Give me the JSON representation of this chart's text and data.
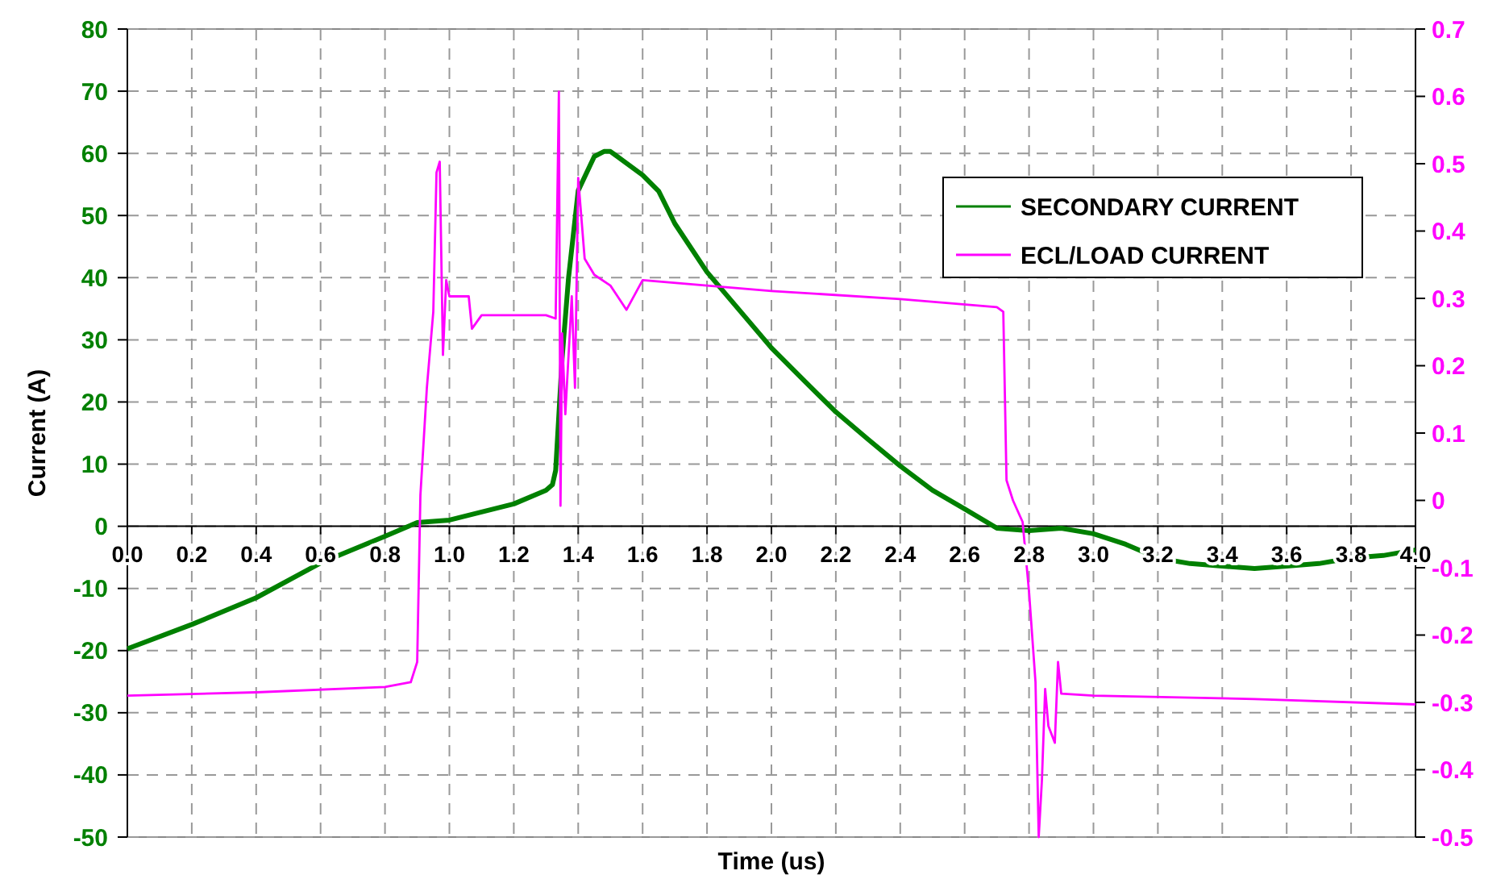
{
  "chart_data": {
    "type": "line",
    "xlabel": "Time (us)",
    "ylabel": "Current (A)",
    "xlim": [
      0,
      4
    ],
    "xticks": [
      {
        "value": 0,
        "label": "0.0"
      },
      0.2,
      0.4,
      0.6,
      0.8,
      {
        "value": 1,
        "label": "1.0"
      },
      1.2,
      1.4,
      1.6,
      1.8,
      {
        "value": 2,
        "label": "2.0"
      },
      2.2,
      2.4,
      2.6,
      2.8,
      {
        "value": 3,
        "label": "3.0"
      },
      3.2,
      3.4,
      3.6,
      3.8,
      {
        "value": 4,
        "label": "4.0"
      }
    ],
    "ylim": [
      -50,
      80
    ],
    "yticks": [
      -50,
      -40,
      -30,
      -20,
      -10,
      0,
      10,
      20,
      30,
      40,
      50,
      60,
      70,
      80
    ],
    "y2lim": [
      -0.5,
      0.7
    ],
    "y2ticks": [
      -0.5,
      -0.4,
      -0.3,
      -0.2,
      -0.1,
      0,
      0.1,
      0.2,
      0.3,
      0.4,
      0.5,
      0.6,
      0.7
    ],
    "grid": true,
    "legend": "right",
    "marker": "none",
    "line_style": "solid",
    "series": [
      {
        "name": "SECONDARY CURRENT",
        "color": "#008000",
        "x": [
          0,
          0.2,
          0.4,
          0.6,
          0.8,
          0.9,
          1.0,
          1.2,
          1.3,
          1.32,
          1.33,
          1.34,
          1.35,
          1.37,
          1.4,
          1.45,
          1.48,
          1.5,
          1.6,
          1.65,
          1.7,
          1.8,
          1.9,
          2.0,
          2.1,
          2.2,
          2.3,
          2.4,
          2.5,
          2.6,
          2.7,
          2.8,
          2.9,
          3.0,
          3.1,
          3.2,
          3.3,
          3.4,
          3.5,
          3.6,
          3.7,
          3.8,
          3.9,
          4.0
        ],
        "values": [
          -19.7,
          -15.8,
          -11.5,
          -5.9,
          -1.6,
          0.6,
          1.0,
          3.6,
          5.8,
          6.7,
          9,
          18,
          27,
          40,
          54,
          59.5,
          60.3,
          60.3,
          56.5,
          53.9,
          48.7,
          40.9,
          34.8,
          28.7,
          23.5,
          18.4,
          14,
          9.7,
          5.8,
          2.8,
          -0.3,
          -0.7,
          -0.3,
          -1.2,
          -2.9,
          -5.1,
          -6,
          -6.4,
          -6.8,
          -6.4,
          -6,
          -5.1,
          -4.7,
          -3.8
        ]
      },
      {
        "name": "ECL/LOAD CURRENT",
        "color": "#ff00ff",
        "axis": "y2",
        "x": [
          0,
          0.4,
          0.8,
          0.88,
          0.9,
          0.91,
          0.93,
          0.95,
          0.96,
          0.97,
          0.98,
          0.99,
          1.0,
          1.06,
          1.07,
          1.1,
          1.3,
          1.33,
          1.34,
          1.345,
          1.35,
          1.36,
          1.38,
          1.39,
          1.4,
          1.42,
          1.45,
          1.5,
          1.55,
          1.6,
          1.8,
          2.0,
          2.4,
          2.7,
          2.72,
          2.73,
          2.75,
          2.78,
          2.8,
          2.82,
          2.83,
          2.84,
          2.85,
          2.86,
          2.88,
          2.89,
          2.9,
          3.0,
          3.5,
          4.0
        ],
        "values": [
          -0.29,
          -0.285,
          -0.277,
          -0.27,
          -0.24,
          0.008,
          0.167,
          0.28,
          0.487,
          0.503,
          0.216,
          0.327,
          0.303,
          0.303,
          0.255,
          0.275,
          0.275,
          0.27,
          0.607,
          -0.008,
          0.248,
          0.128,
          0.303,
          0.167,
          0.479,
          0.359,
          0.335,
          0.319,
          0.283,
          0.327,
          0.319,
          0.311,
          0.299,
          0.287,
          0.28,
          0.03,
          0.0,
          -0.032,
          -0.136,
          -0.27,
          -0.5,
          -0.415,
          -0.28,
          -0.335,
          -0.36,
          -0.24,
          -0.287,
          -0.29,
          -0.295,
          -0.303
        ]
      }
    ]
  }
}
